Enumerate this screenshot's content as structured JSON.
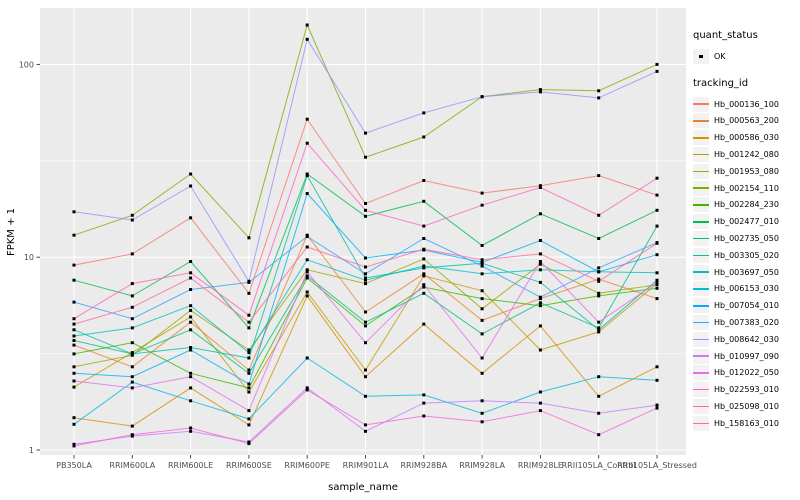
{
  "chart_data": {
    "type": "line",
    "title": "",
    "xlabel": "sample_name",
    "ylabel": "FPKM + 1",
    "y_scale": "log10",
    "y_tick_labels": [
      "1",
      "10",
      "100"
    ],
    "y_tick_values": [
      1,
      10,
      100
    ],
    "y_minor_values": [
      3.1623,
      31.623
    ],
    "ylim": [
      0.94,
      195
    ],
    "x_categories": [
      "PB350LA",
      "RRIM600LA",
      "RRIM600LE",
      "RRIM600SE",
      "RRIM600PE",
      "RRIM901LA",
      "RRIM928BA",
      "RRIM928LA",
      "RRIM928LE",
      "RRII105LA_Control",
      "RRII105LA_Stressed"
    ],
    "colors": {
      "panel_bg": "#EBEBEB",
      "grid": "#FFFFFF",
      "point": "#000000",
      "tick": "#333333",
      "axis_text": "#4D4D4D",
      "legend_key_bg": "#F2F2F2"
    },
    "legend": {
      "position": "right",
      "quant_status_title": "quant_status",
      "quant_status_items": [
        "OK"
      ],
      "tracking_id_title": "tracking_id"
    },
    "series": [
      {
        "name": "Hb_000136_100",
        "color": "#F8766D",
        "values": [
          9.1,
          10.4,
          16.0,
          6.5,
          52,
          19,
          25,
          21.5,
          23.5,
          26.5,
          21
        ]
      },
      {
        "name": "Hb_000563_200",
        "color": "#EA8331",
        "values": [
          3.5,
          2.7,
          4.6,
          2.6,
          13,
          5.2,
          8.2,
          4.7,
          6.1,
          7.7,
          6.1
        ]
      },
      {
        "name": "Hb_000586_030",
        "color": "#D89000",
        "values": [
          1.47,
          1.33,
          2.1,
          1.35,
          6.3,
          2.4,
          4.5,
          2.5,
          4.4,
          1.9,
          2.7
        ]
      },
      {
        "name": "Hb_001242_080",
        "color": "#C09B00",
        "values": [
          2.12,
          3.2,
          4.9,
          2.0,
          6.6,
          2.6,
          8.0,
          6.7,
          3.3,
          4.1,
          7.3
        ]
      },
      {
        "name": "Hb_001953_080",
        "color": "#A3A500",
        "values": [
          2.7,
          3.1,
          5.3,
          3.3,
          8.6,
          7.3,
          9.8,
          5.4,
          9.2,
          6.5,
          7.2
        ]
      },
      {
        "name": "Hb_002154_110",
        "color": "#7CAE00",
        "values": [
          13,
          16.5,
          27,
          12.6,
          160,
          33,
          42,
          68,
          74,
          73,
          100
        ]
      },
      {
        "name": "Hb_002284_230",
        "color": "#39B600",
        "values": [
          3.15,
          3.6,
          2.5,
          2.1,
          7.8,
          4.4,
          7.0,
          6.1,
          5.6,
          6.3,
          6.9
        ]
      },
      {
        "name": "Hb_002477_010",
        "color": "#00BB4E",
        "values": [
          7.6,
          6.3,
          9.5,
          4.3,
          27,
          16.3,
          19.5,
          11.5,
          16.8,
          12.5,
          17.5
        ]
      },
      {
        "name": "Hb_002735_050",
        "color": "#00BF7D",
        "values": [
          3.7,
          3.15,
          4.2,
          2.5,
          8.0,
          4.6,
          6.5,
          4.0,
          5.8,
          4.3,
          14.5
        ]
      },
      {
        "name": "Hb_003305_020",
        "color": "#00C1A3",
        "values": [
          4.2,
          3.15,
          3.4,
          3.0,
          26.5,
          7.8,
          8.8,
          9.3,
          7.4,
          4.2,
          7.6
        ]
      },
      {
        "name": "Hb_003697_050",
        "color": "#00BFC4",
        "values": [
          3.9,
          4.3,
          5.6,
          3.2,
          9.7,
          7.6,
          9.0,
          8.2,
          8.6,
          8.4,
          8.3
        ]
      },
      {
        "name": "Hb_006153_030",
        "color": "#00BAE0",
        "values": [
          1.36,
          2.25,
          1.8,
          1.45,
          3.0,
          1.9,
          1.93,
          1.55,
          2.0,
          2.4,
          2.3
        ]
      },
      {
        "name": "Hb_007054_010",
        "color": "#00B0F6",
        "values": [
          2.5,
          2.4,
          3.3,
          2.2,
          21.4,
          9.9,
          10.9,
          9.4,
          12.2,
          8.4,
          10.3
        ]
      },
      {
        "name": "Hb_007383_020",
        "color": "#35A2FF",
        "values": [
          5.85,
          4.8,
          6.8,
          7.4,
          12.8,
          8.2,
          12.5,
          9.0,
          6.2,
          8.8,
          11.9
        ]
      },
      {
        "name": "Hb_008642_030",
        "color": "#9590FF",
        "values": [
          17.2,
          15.6,
          23.4,
          7.5,
          135,
          44,
          56,
          68,
          72,
          67,
          92
        ]
      },
      {
        "name": "Hb_010997_090",
        "color": "#C77CFF",
        "values": [
          1.07,
          1.18,
          1.25,
          1.1,
          2.1,
          1.25,
          1.75,
          1.8,
          1.75,
          1.55,
          1.71
        ]
      },
      {
        "name": "Hb_012022_050",
        "color": "#E76BF3",
        "values": [
          2.28,
          2.1,
          2.4,
          1.6,
          8.4,
          3.6,
          7.2,
          3.0,
          9.5,
          4.6,
          7.4
        ]
      },
      {
        "name": "Hb_022593_010",
        "color": "#FA62DB",
        "values": [
          1.05,
          1.2,
          1.3,
          1.08,
          2.05,
          1.35,
          1.5,
          1.4,
          1.6,
          1.2,
          1.65
        ]
      },
      {
        "name": "Hb_025098_010",
        "color": "#FF62BC",
        "values": [
          4.8,
          7.3,
          8.3,
          5.0,
          39,
          17.5,
          14.5,
          18.6,
          23.0,
          16.5,
          25.7
        ]
      },
      {
        "name": "Hb_158163_010",
        "color": "#FF6A98",
        "values": [
          4.5,
          5.5,
          7.8,
          4.6,
          11.3,
          8.9,
          11.0,
          9.7,
          10.4,
          7.5,
          11.8
        ]
      }
    ]
  }
}
